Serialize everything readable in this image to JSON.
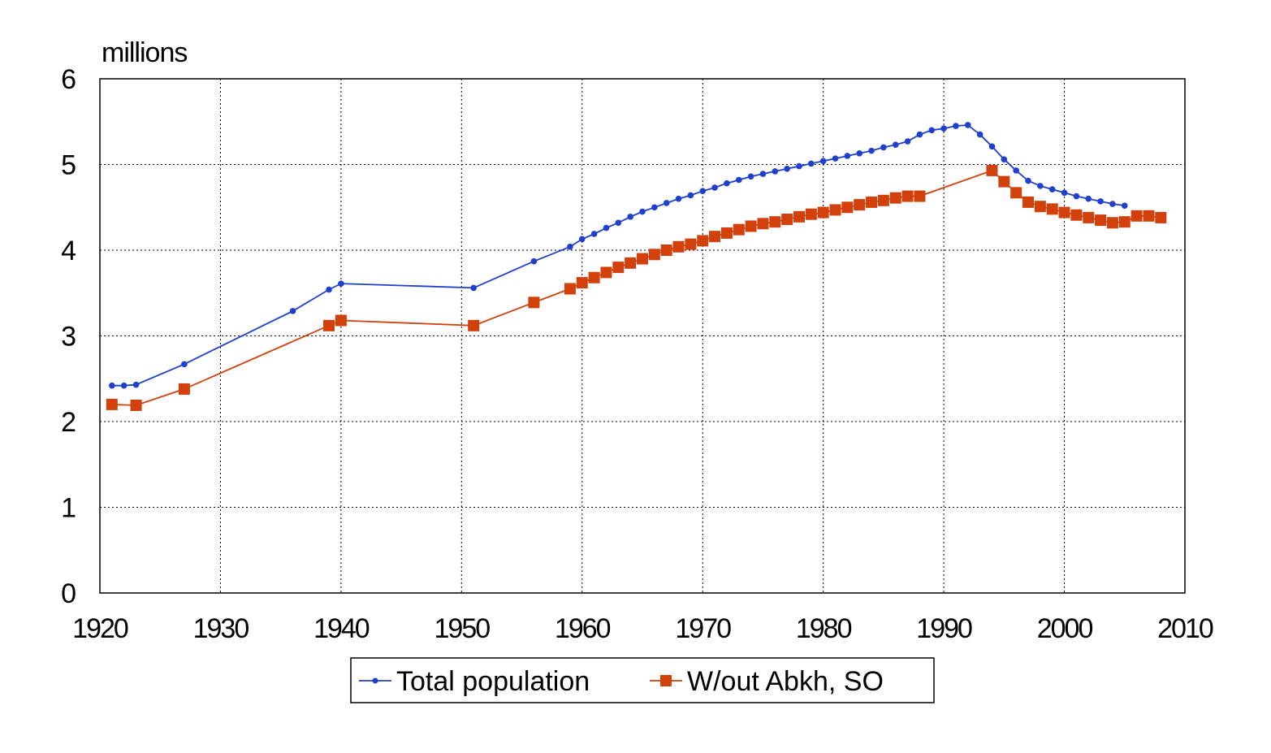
{
  "chart_data": {
    "type": "line",
    "ylabel": "millions",
    "xlim": [
      1920,
      2010
    ],
    "ylim": [
      0,
      6
    ],
    "x_ticks": [
      "1920",
      "1930",
      "1940",
      "1950",
      "1960",
      "1970",
      "1980",
      "1990",
      "2000",
      "2010"
    ],
    "y_ticks": [
      "0",
      "1",
      "2",
      "3",
      "4",
      "5",
      "6"
    ],
    "grid": true,
    "legend_position": "bottom",
    "series": [
      {
        "name": "Total population",
        "color": "#1f3fcf",
        "marker": "circle",
        "x": [
          1921,
          1922,
          1923,
          1927,
          1936,
          1939,
          1940,
          1951,
          1956,
          1959,
          1960,
          1961,
          1962,
          1963,
          1964,
          1965,
          1966,
          1967,
          1968,
          1969,
          1970,
          1971,
          1972,
          1973,
          1974,
          1975,
          1976,
          1977,
          1978,
          1979,
          1980,
          1981,
          1982,
          1983,
          1984,
          1985,
          1986,
          1987,
          1988,
          1989,
          1990,
          1991,
          1992,
          1993,
          1994,
          1995,
          1996,
          1997,
          1998,
          1999,
          2000,
          2001,
          2002,
          2003,
          2004,
          2005
        ],
        "y": [
          2.42,
          2.42,
          2.43,
          2.67,
          3.29,
          3.54,
          3.61,
          3.56,
          3.87,
          4.04,
          4.13,
          4.19,
          4.26,
          4.32,
          4.39,
          4.45,
          4.5,
          4.55,
          4.6,
          4.64,
          4.69,
          4.73,
          4.78,
          4.82,
          4.86,
          4.89,
          4.92,
          4.95,
          4.98,
          5.01,
          5.04,
          5.07,
          5.1,
          5.13,
          5.16,
          5.2,
          5.23,
          5.27,
          5.35,
          5.4,
          5.42,
          5.45,
          5.46,
          5.35,
          5.21,
          5.06,
          4.93,
          4.81,
          4.75,
          4.71,
          4.67,
          4.63,
          4.6,
          4.57,
          4.54,
          4.52
        ]
      },
      {
        "name": "W/out Abkh, SO",
        "color": "#d2400c",
        "marker": "square",
        "x": [
          1921,
          1923,
          1927,
          1939,
          1940,
          1951,
          1956,
          1959,
          1960,
          1961,
          1962,
          1963,
          1964,
          1965,
          1966,
          1967,
          1968,
          1969,
          1970,
          1971,
          1972,
          1973,
          1974,
          1975,
          1976,
          1977,
          1978,
          1979,
          1980,
          1981,
          1982,
          1983,
          1984,
          1985,
          1986,
          1987,
          1988,
          1994,
          1995,
          1996,
          1997,
          1998,
          1999,
          2000,
          2001,
          2002,
          2003,
          2004,
          2005,
          2006,
          2007,
          2008
        ],
        "y": [
          2.2,
          2.19,
          2.38,
          3.12,
          3.18,
          3.12,
          3.39,
          3.55,
          3.62,
          3.68,
          3.74,
          3.8,
          3.85,
          3.9,
          3.95,
          4.0,
          4.04,
          4.07,
          4.11,
          4.16,
          4.2,
          4.24,
          4.28,
          4.31,
          4.33,
          4.36,
          4.39,
          4.42,
          4.44,
          4.47,
          4.5,
          4.53,
          4.56,
          4.58,
          4.61,
          4.63,
          4.63,
          4.93,
          4.8,
          4.67,
          4.56,
          4.51,
          4.48,
          4.44,
          4.41,
          4.38,
          4.35,
          4.32,
          4.33,
          4.4,
          4.4,
          4.38
        ]
      }
    ]
  }
}
